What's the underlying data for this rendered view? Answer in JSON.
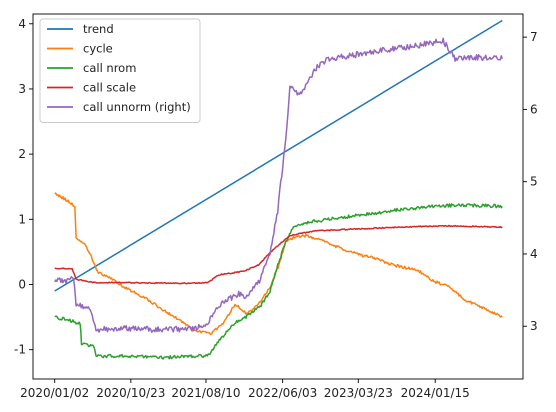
{
  "chart_data": {
    "type": "line",
    "title": "",
    "xlabel": "",
    "ylabel": "",
    "ylabel_right": "",
    "x_ticks": [
      "2020/01/02",
      "2020/10/23",
      "2021/08/10",
      "2022/06/03",
      "2023/03/23",
      "2024/01/15"
    ],
    "xlim": [
      "2019/10/10",
      "2024/12/20"
    ],
    "ylim_left": [
      -1.45,
      4.15
    ],
    "y_ticks_left": [
      -1,
      0,
      1,
      2,
      3,
      4
    ],
    "ylim_right": [
      2.27,
      7.32
    ],
    "y_ticks_right": [
      3,
      4,
      5,
      6,
      7
    ],
    "grid": false,
    "legend_position": "upper-left",
    "series": [
      {
        "name": "trend",
        "axis": "left",
        "color": "#1f77b4",
        "points": [
          [
            "2020/01/02",
            -0.1
          ],
          [
            "2024/10/01",
            4.05
          ]
        ]
      },
      {
        "name": "cycle",
        "axis": "left",
        "color": "#ff7f0e",
        "points": [
          [
            "2020/01/02",
            1.4
          ],
          [
            "2020/02/15",
            1.3
          ],
          [
            "2020/03/20",
            1.2
          ],
          [
            "2020/03/25",
            0.7
          ],
          [
            "2020/05/01",
            0.6
          ],
          [
            "2020/05/20",
            0.45
          ],
          [
            "2020/06/15",
            0.2
          ],
          [
            "2020/08/01",
            0.1
          ],
          [
            "2020/10/01",
            -0.05
          ],
          [
            "2020/12/15",
            -0.2
          ],
          [
            "2021/03/01",
            -0.4
          ],
          [
            "2021/05/01",
            -0.55
          ],
          [
            "2021/06/20",
            -0.7
          ],
          [
            "2021/09/01",
            -0.75
          ],
          [
            "2021/10/15",
            -0.6
          ],
          [
            "2021/12/01",
            -0.3
          ],
          [
            "2022/01/15",
            -0.45
          ],
          [
            "2022/03/01",
            -0.3
          ],
          [
            "2022/04/15",
            -0.05
          ],
          [
            "2022/05/20",
            0.3
          ],
          [
            "2022/06/15",
            0.65
          ],
          [
            "2022/07/15",
            0.72
          ],
          [
            "2022/09/01",
            0.75
          ],
          [
            "2022/11/01",
            0.68
          ],
          [
            "2023/01/15",
            0.55
          ],
          [
            "2023/04/01",
            0.45
          ],
          [
            "2023/06/01",
            0.4
          ],
          [
            "2023/08/01",
            0.3
          ],
          [
            "2023/10/01",
            0.25
          ],
          [
            "2023/11/15",
            0.2
          ],
          [
            "2024/01/10",
            0.05
          ],
          [
            "2024/03/15",
            -0.05
          ],
          [
            "2024/05/15",
            -0.25
          ],
          [
            "2024/07/15",
            -0.35
          ],
          [
            "2024/10/01",
            -0.5
          ]
        ]
      },
      {
        "name": "call nrom",
        "axis": "left",
        "color": "#2ca02c",
        "points": [
          [
            "2020/01/02",
            -0.5
          ],
          [
            "2020/03/01",
            -0.55
          ],
          [
            "2020/04/10",
            -0.6
          ],
          [
            "2020/04/15",
            -0.92
          ],
          [
            "2020/06/01",
            -0.95
          ],
          [
            "2020/06/10",
            -1.1
          ],
          [
            "2020/10/01",
            -1.1
          ],
          [
            "2021/03/01",
            -1.12
          ],
          [
            "2021/06/01",
            -1.1
          ],
          [
            "2021/08/15",
            -1.1
          ],
          [
            "2021/09/15",
            -0.95
          ],
          [
            "2021/11/01",
            -0.7
          ],
          [
            "2021/12/15",
            -0.55
          ],
          [
            "2022/02/01",
            -0.45
          ],
          [
            "2022/03/15",
            -0.3
          ],
          [
            "2022/04/15",
            -0.1
          ],
          [
            "2022/05/15",
            0.3
          ],
          [
            "2022/06/15",
            0.65
          ],
          [
            "2022/07/15",
            0.88
          ],
          [
            "2022/09/01",
            0.95
          ],
          [
            "2022/12/01",
            1.0
          ],
          [
            "2023/03/01",
            1.05
          ],
          [
            "2023/06/01",
            1.1
          ],
          [
            "2023/09/01",
            1.15
          ],
          [
            "2024/01/15",
            1.2
          ],
          [
            "2024/05/01",
            1.22
          ],
          [
            "2024/10/01",
            1.2
          ]
        ]
      },
      {
        "name": "call scale",
        "axis": "left",
        "color": "#d62728",
        "points": [
          [
            "2020/01/02",
            0.25
          ],
          [
            "2020/03/10",
            0.24
          ],
          [
            "2020/03/25",
            0.08
          ],
          [
            "2020/06/01",
            0.03
          ],
          [
            "2020/10/01",
            0.03
          ],
          [
            "2021/03/01",
            0.02
          ],
          [
            "2021/07/01",
            0.02
          ],
          [
            "2021/08/15",
            0.03
          ],
          [
            "2021/10/01",
            0.15
          ],
          [
            "2022/01/01",
            0.2
          ],
          [
            "2022/03/01",
            0.3
          ],
          [
            "2022/05/01",
            0.55
          ],
          [
            "2022/07/01",
            0.75
          ],
          [
            "2022/10/01",
            0.82
          ],
          [
            "2023/03/01",
            0.85
          ],
          [
            "2023/09/01",
            0.88
          ],
          [
            "2024/03/01",
            0.9
          ],
          [
            "2024/10/01",
            0.88
          ]
        ]
      },
      {
        "name": "call unnorm (right)",
        "axis": "right",
        "color": "#9467bd",
        "points": [
          [
            "2020/01/02",
            3.65
          ],
          [
            "2020/02/15",
            3.6
          ],
          [
            "2020/03/15",
            3.7
          ],
          [
            "2020/03/25",
            3.3
          ],
          [
            "2020/05/15",
            3.25
          ],
          [
            "2020/06/10",
            2.95
          ],
          [
            "2020/10/01",
            2.97
          ],
          [
            "2021/03/01",
            2.95
          ],
          [
            "2021/07/01",
            2.97
          ],
          [
            "2021/08/15",
            3.05
          ],
          [
            "2021/10/01",
            3.3
          ],
          [
            "2021/12/15",
            3.45
          ],
          [
            "2022/01/15",
            3.4
          ],
          [
            "2022/03/01",
            3.6
          ],
          [
            "2022/04/15",
            4.0
          ],
          [
            "2022/05/15",
            4.6
          ],
          [
            "2022/06/15",
            5.6
          ],
          [
            "2022/07/01",
            6.3
          ],
          [
            "2022/08/15",
            6.2
          ],
          [
            "2022/10/15",
            6.6
          ],
          [
            "2022/12/01",
            6.7
          ],
          [
            "2023/03/01",
            6.75
          ],
          [
            "2023/06/01",
            6.8
          ],
          [
            "2023/09/01",
            6.85
          ],
          [
            "2023/12/01",
            6.9
          ],
          [
            "2024/02/15",
            6.95
          ],
          [
            "2024/04/01",
            6.7
          ],
          [
            "2024/07/01",
            6.72
          ],
          [
            "2024/10/01",
            6.7
          ]
        ]
      }
    ]
  }
}
